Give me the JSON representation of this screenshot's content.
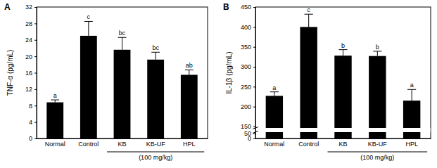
{
  "chart_data": [
    {
      "type": "bar",
      "title": "A",
      "y_label": "TNF-α (pg/mL)",
      "categories": [
        "Normal",
        "Control",
        "KB",
        "KB-UF",
        "HPL"
      ],
      "values": [
        8.8,
        25.0,
        21.6,
        19.2,
        15.5
      ],
      "errors": [
        0.6,
        3.5,
        3.0,
        1.8,
        1.2
      ],
      "annotations": [
        "a",
        "c",
        "bc",
        "bc",
        "ab"
      ],
      "color": "#000000",
      "ylim": [
        0,
        32
      ],
      "yticks": [
        0,
        4,
        8,
        12,
        16,
        20,
        24,
        28,
        32
      ],
      "group_label": {
        "text": "(100 mg/kg)",
        "categories": [
          "KB",
          "KB-UF",
          "HPL"
        ]
      }
    },
    {
      "type": "bar",
      "title": "B",
      "y_label": "IL-1β (pg/mL)",
      "categories": [
        "Normal",
        "Control",
        "KB",
        "KB-UF",
        "HPL"
      ],
      "values": [
        227,
        400,
        328,
        327,
        215
      ],
      "errors": [
        10,
        32,
        15,
        12,
        28
      ],
      "annotations": [
        "a",
        "c",
        "b",
        "b",
        "a"
      ],
      "color": "#000000",
      "ylim": [
        0,
        450
      ],
      "yticks": [
        0,
        50,
        150,
        200,
        250,
        300,
        350,
        400,
        450
      ],
      "group_label": {
        "text": "(100 mg/kg)",
        "categories": [
          "KB",
          "KB-UF",
          "HPL"
        ]
      }
    }
  ]
}
